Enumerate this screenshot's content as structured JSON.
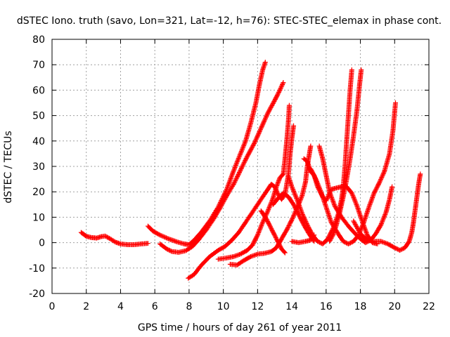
{
  "chart_data": {
    "type": "scatter",
    "title": "dSTEC Iono. truth (savo, Lon=321, Lat=-12, h=76): STEC-STEC_elemax in phase cont.",
    "xlabel": "GPS time / hours of day 261 of year 2011",
    "ylabel": "dSTEC  / TECUs",
    "xlim": [
      0,
      22
    ],
    "ylim": [
      -20,
      80
    ],
    "xticks": [
      0,
      2,
      4,
      6,
      8,
      10,
      12,
      14,
      16,
      18,
      20,
      22
    ],
    "yticks": [
      -20,
      -10,
      0,
      10,
      20,
      30,
      40,
      50,
      60,
      70,
      80
    ],
    "grid": true,
    "marker": "+",
    "color": "#ff0000",
    "series": [
      {
        "points": [
          [
            1.7,
            4
          ],
          [
            2.0,
            2.5
          ],
          [
            2.3,
            2.0
          ],
          [
            2.6,
            1.8
          ],
          [
            2.9,
            2.4
          ],
          [
            3.1,
            2.6
          ],
          [
            3.4,
            1.5
          ],
          [
            3.7,
            0.2
          ],
          [
            4.0,
            -0.5
          ],
          [
            4.4,
            -0.8
          ],
          [
            4.8,
            -0.8
          ],
          [
            5.2,
            -0.5
          ],
          [
            5.6,
            -0.3
          ]
        ]
      },
      {
        "points": [
          [
            5.6,
            6.5
          ],
          [
            5.9,
            4.5
          ],
          [
            6.3,
            3.0
          ],
          [
            6.8,
            1.5
          ],
          [
            7.3,
            0.3
          ],
          [
            7.7,
            -0.5
          ],
          [
            8.0,
            -0.8
          ],
          [
            8.3,
            1.0
          ],
          [
            8.7,
            4.0
          ],
          [
            9.2,
            8.5
          ],
          [
            9.7,
            14.0
          ],
          [
            10.2,
            21.0
          ],
          [
            10.5,
            26.5
          ],
          [
            10.7,
            30.0
          ],
          [
            11.0,
            35.0
          ],
          [
            11.3,
            40.0
          ],
          [
            11.6,
            47.0
          ],
          [
            11.9,
            55.0
          ],
          [
            12.1,
            62.0
          ],
          [
            12.3,
            68.0
          ],
          [
            12.45,
            71.0
          ]
        ]
      },
      {
        "points": [
          [
            6.3,
            -0.5
          ],
          [
            6.7,
            -2.5
          ],
          [
            7.0,
            -3.5
          ],
          [
            7.4,
            -3.8
          ],
          [
            7.8,
            -3.2
          ],
          [
            8.2,
            -1.5
          ],
          [
            8.6,
            1.5
          ],
          [
            9.0,
            5.0
          ],
          [
            9.4,
            9.0
          ],
          [
            9.8,
            13.5
          ],
          [
            10.2,
            18.5
          ],
          [
            10.6,
            23.0
          ],
          [
            11.0,
            28.5
          ],
          [
            11.4,
            34.0
          ],
          [
            11.8,
            39.0
          ],
          [
            12.2,
            45.0
          ],
          [
            12.6,
            51.0
          ],
          [
            13.0,
            56.0
          ],
          [
            13.3,
            60.0
          ],
          [
            13.5,
            63.0
          ]
        ]
      },
      {
        "points": [
          [
            7.95,
            -14
          ],
          [
            8.3,
            -12.5
          ],
          [
            8.7,
            -9.0
          ],
          [
            9.2,
            -5.5
          ],
          [
            9.7,
            -3.0
          ],
          [
            10.1,
            -1.5
          ],
          [
            10.5,
            1.0
          ],
          [
            10.9,
            4.0
          ],
          [
            11.3,
            8.0
          ],
          [
            11.7,
            12.0
          ],
          [
            12.1,
            16.0
          ],
          [
            12.5,
            20.0
          ],
          [
            12.8,
            23.0
          ],
          [
            13.0,
            22.0
          ],
          [
            13.2,
            19.0
          ],
          [
            13.4,
            17.0
          ],
          [
            13.6,
            19.0
          ],
          [
            13.8,
            27.0
          ],
          [
            13.9,
            35.0
          ],
          [
            14.0,
            41.0
          ],
          [
            14.1,
            46.0
          ]
        ]
      },
      {
        "points": [
          [
            9.7,
            -6.5
          ],
          [
            10.2,
            -6.0
          ],
          [
            10.6,
            -5.5
          ],
          [
            11.0,
            -4.5
          ],
          [
            11.4,
            -3.0
          ],
          [
            11.7,
            -1.0
          ],
          [
            12.0,
            3.0
          ],
          [
            12.3,
            8.0
          ],
          [
            12.6,
            12.5
          ],
          [
            12.9,
            17.5
          ],
          [
            13.1,
            22.0
          ],
          [
            13.3,
            25.5
          ],
          [
            13.5,
            27.0
          ],
          [
            13.6,
            33.0
          ],
          [
            13.7,
            40.0
          ],
          [
            13.8,
            48.0
          ],
          [
            13.85,
            54.0
          ]
        ]
      },
      {
        "points": [
          [
            10.4,
            -8.5
          ],
          [
            10.8,
            -8.8
          ],
          [
            11.2,
            -7.0
          ],
          [
            11.6,
            -5.5
          ],
          [
            12.0,
            -4.5
          ],
          [
            12.4,
            -4.2
          ],
          [
            12.8,
            -3.5
          ],
          [
            13.1,
            -2.0
          ],
          [
            13.4,
            1.5
          ],
          [
            13.7,
            5.0
          ],
          [
            14.0,
            9.0
          ],
          [
            14.3,
            13.5
          ],
          [
            14.6,
            18.5
          ],
          [
            14.8,
            24.0
          ],
          [
            14.9,
            30.0
          ],
          [
            15.0,
            34.0
          ],
          [
            15.1,
            38.0
          ]
        ]
      },
      {
        "points": [
          [
            12.2,
            12.5
          ],
          [
            12.5,
            9.5
          ],
          [
            12.8,
            5.5
          ],
          [
            13.1,
            1.5
          ],
          [
            13.4,
            -2.5
          ],
          [
            13.6,
            -4.0
          ]
        ]
      },
      {
        "points": [
          [
            12.9,
            15.0
          ],
          [
            13.2,
            17.5
          ],
          [
            13.5,
            19.5
          ],
          [
            13.8,
            18.0
          ],
          [
            14.1,
            15.0
          ],
          [
            14.4,
            11.0
          ],
          [
            14.7,
            7.0
          ],
          [
            15.0,
            3.5
          ],
          [
            15.3,
            0.5
          ]
        ]
      },
      {
        "points": [
          [
            13.8,
            26.0
          ],
          [
            14.0,
            22.0
          ],
          [
            14.3,
            17.0
          ],
          [
            14.6,
            11.5
          ],
          [
            14.9,
            7.0
          ],
          [
            15.2,
            3.0
          ],
          [
            15.5,
            0.5
          ],
          [
            15.8,
            -0.5
          ],
          [
            16.1,
            1.5
          ],
          [
            16.4,
            5.5
          ],
          [
            16.7,
            11.0
          ],
          [
            16.9,
            17.0
          ],
          [
            17.0,
            22.0
          ],
          [
            17.1,
            30.0
          ],
          [
            17.2,
            40.0
          ],
          [
            17.3,
            50.0
          ],
          [
            17.4,
            60.0
          ],
          [
            17.5,
            68.0
          ]
        ]
      },
      {
        "points": [
          [
            14.0,
            0.5
          ],
          [
            14.4,
            0.0
          ],
          [
            14.8,
            0.5
          ],
          [
            15.1,
            1.0
          ],
          [
            15.3,
            3.0
          ]
        ]
      },
      {
        "points": [
          [
            14.7,
            33.0
          ],
          [
            14.9,
            32.0
          ],
          [
            15.1,
            28.0
          ],
          [
            15.3,
            26.5
          ],
          [
            15.5,
            22.0
          ],
          [
            15.8,
            18.0
          ],
          [
            16.0,
            16.5
          ],
          [
            16.3,
            21.0
          ],
          [
            16.6,
            21.5
          ],
          [
            16.9,
            22.0
          ],
          [
            17.2,
            22.0
          ],
          [
            17.5,
            19.5
          ],
          [
            17.8,
            14.5
          ],
          [
            18.1,
            8.5
          ],
          [
            18.4,
            3.0
          ],
          [
            18.7,
            0.0
          ],
          [
            19.0,
            -0.5
          ]
        ]
      },
      {
        "points": [
          [
            15.1,
            29.0
          ],
          [
            15.4,
            25.0
          ],
          [
            15.7,
            20.0
          ],
          [
            16.0,
            14.0
          ],
          [
            16.3,
            8.0
          ],
          [
            16.7,
            3.5
          ],
          [
            17.0,
            0.5
          ],
          [
            17.3,
            -0.5
          ],
          [
            17.6,
            0.5
          ],
          [
            17.9,
            3.0
          ],
          [
            18.2,
            8.0
          ],
          [
            18.5,
            14.0
          ],
          [
            18.8,
            19.5
          ],
          [
            19.1,
            23.5
          ],
          [
            19.4,
            28.0
          ],
          [
            19.7,
            35.0
          ],
          [
            19.9,
            44.0
          ],
          [
            20.05,
            55.0
          ]
        ]
      },
      {
        "points": [
          [
            15.6,
            38.0
          ],
          [
            15.8,
            33.0
          ],
          [
            16.0,
            26.5
          ],
          [
            16.2,
            20.0
          ],
          [
            16.5,
            14.5
          ],
          [
            16.9,
            10.0
          ],
          [
            17.3,
            6.5
          ],
          [
            17.7,
            3.5
          ],
          [
            18.0,
            1.5
          ],
          [
            18.3,
            0.0
          ],
          [
            18.6,
            1.0
          ],
          [
            18.9,
            3.5
          ],
          [
            19.2,
            7.0
          ],
          [
            19.5,
            12.0
          ],
          [
            19.7,
            17.0
          ],
          [
            19.85,
            22.0
          ]
        ]
      },
      {
        "points": [
          [
            16.2,
            0.5
          ],
          [
            16.4,
            3.0
          ],
          [
            16.6,
            7.0
          ],
          [
            16.8,
            12.0
          ],
          [
            17.0,
            18.0
          ],
          [
            17.2,
            25.0
          ],
          [
            17.4,
            33.0
          ],
          [
            17.6,
            42.0
          ],
          [
            17.8,
            52.0
          ],
          [
            17.95,
            62.0
          ],
          [
            18.05,
            68.0
          ]
        ]
      },
      {
        "points": [
          [
            17.6,
            8.5
          ],
          [
            18.0,
            3.5
          ],
          [
            18.4,
            1.0
          ],
          [
            18.8,
            0.5
          ],
          [
            19.2,
            0.5
          ],
          [
            19.6,
            -0.5
          ],
          [
            20.0,
            -2.0
          ],
          [
            20.3,
            -3.0
          ],
          [
            20.6,
            -2.0
          ],
          [
            20.85,
            0.5
          ],
          [
            21.0,
            4.0
          ],
          [
            21.1,
            8.0
          ],
          [
            21.2,
            13.0
          ],
          [
            21.3,
            18.0
          ],
          [
            21.4,
            23.0
          ],
          [
            21.5,
            27.0
          ]
        ]
      }
    ]
  }
}
